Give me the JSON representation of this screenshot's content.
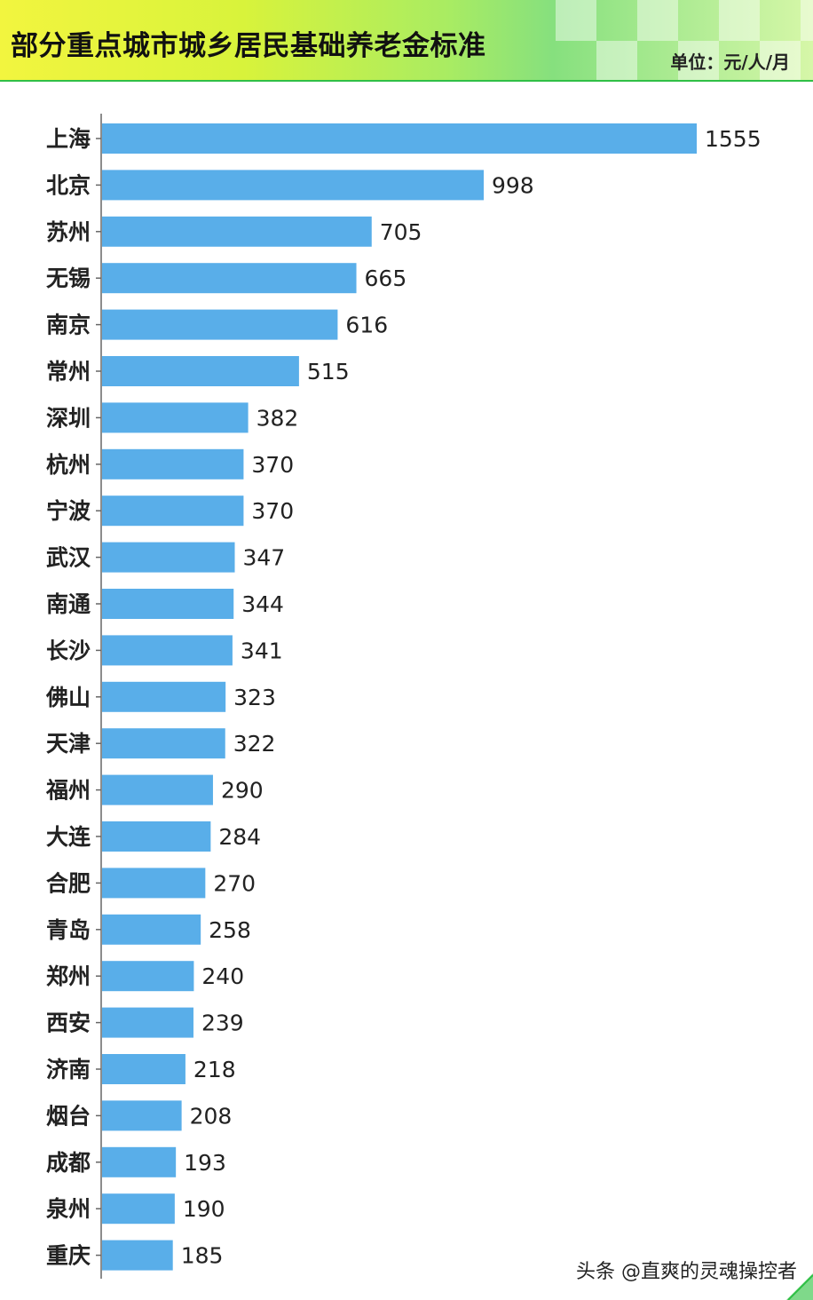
{
  "header": {
    "title": "部分重点城市城乡居民基础养老金标准",
    "unit": "单位：元/人/月"
  },
  "watermark": "头条 @直爽的灵魂操控者",
  "colors": {
    "bar": "#59aee9",
    "header_green": "#2fbf46"
  },
  "chart_data": {
    "type": "bar",
    "orientation": "horizontal",
    "title": "部分重点城市城乡居民基础养老金标准",
    "unit": "单位：元/人/月",
    "categories": [
      "上海",
      "北京",
      "苏州",
      "无锡",
      "南京",
      "常州",
      "深圳",
      "杭州",
      "宁波",
      "武汉",
      "南通",
      "长沙",
      "佛山",
      "天津",
      "福州",
      "大连",
      "合肥",
      "青岛",
      "郑州",
      "西安",
      "济南",
      "烟台",
      "成都",
      "泉州",
      "重庆"
    ],
    "values": [
      1555,
      998,
      705,
      665,
      616,
      515,
      382,
      370,
      370,
      347,
      344,
      341,
      323,
      322,
      290,
      284,
      270,
      258,
      240,
      239,
      218,
      208,
      193,
      190,
      185
    ],
    "xlim": [
      0,
      1555
    ],
    "grid": false,
    "data_labels": true
  }
}
